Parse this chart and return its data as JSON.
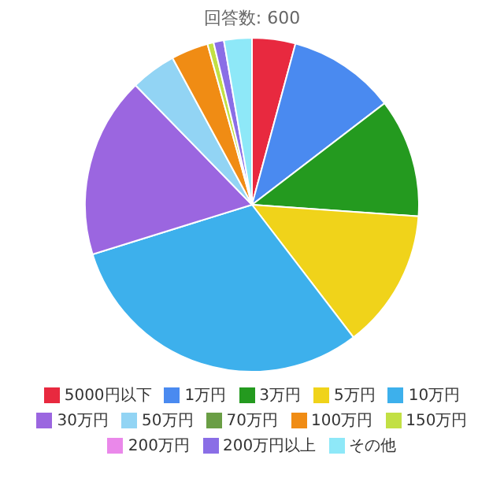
{
  "chart_data": {
    "type": "pie",
    "title": "回答数: 600",
    "categories": [
      "5000円以下",
      "1万円",
      "3万円",
      "5万円",
      "10万円",
      "30万円",
      "50万円",
      "70万円",
      "100万円",
      "150万円",
      "200万円",
      "200万円以上",
      "その他"
    ],
    "values": [
      4.2,
      10.4,
      11.5,
      13.5,
      30.6,
      17.5,
      4.4,
      0,
      3.6,
      0.6,
      0,
      1.0,
      2.7
    ],
    "colors": [
      "#e8293f",
      "#4a8af0",
      "#249a1f",
      "#f0d31a",
      "#3db0ec",
      "#9b66e0",
      "#92d4f4",
      "#6a9e45",
      "#f08c14",
      "#c2e044",
      "#ea88ea",
      "#8a6ee6",
      "#8ee8f8"
    ],
    "legend": "bottom"
  }
}
